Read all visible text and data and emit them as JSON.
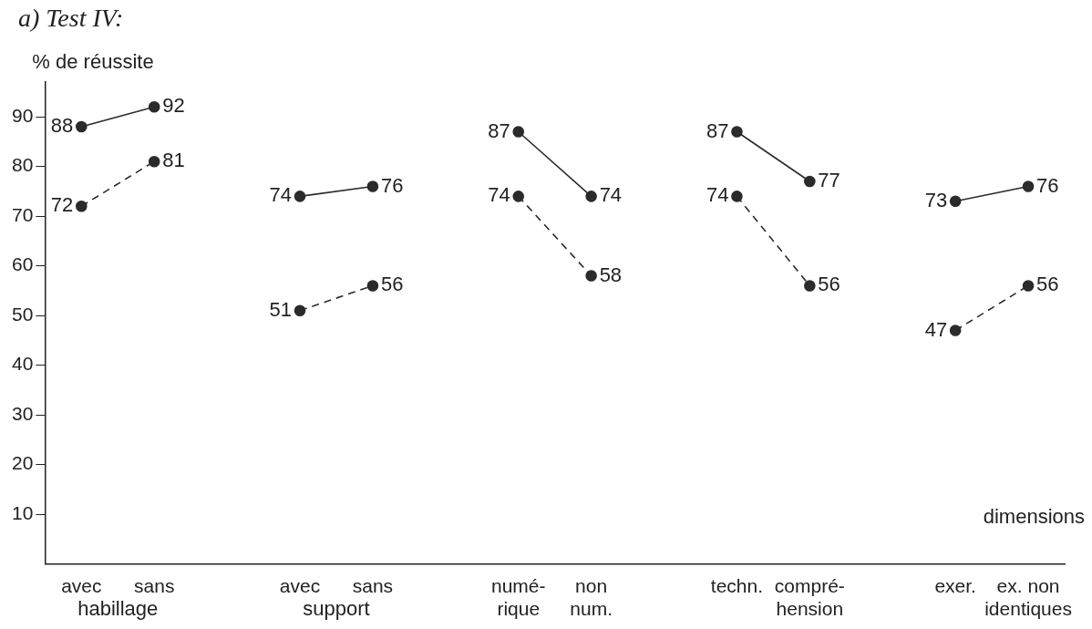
{
  "chart_data": {
    "type": "line",
    "title": "a) Test IV:",
    "ylabel": "% de réussite",
    "xlabel": "dimensions",
    "categories": [
      "avec",
      "sans",
      null,
      "avec",
      "sans",
      null,
      "numé-\nrique",
      "non\nnum.",
      null,
      "techn.",
      "compré-\nhension",
      null,
      "exer.",
      "ex. non\nidentiques"
    ],
    "series": [
      {
        "color": "#2b2b2b",
        "line_style": "solid",
        "values": [
          88,
          92,
          null,
          74,
          76,
          null,
          87,
          74,
          null,
          87,
          77,
          null,
          73,
          76
        ]
      },
      {
        "color": "#2b2b2b",
        "line_style": "dashed",
        "values": [
          72,
          81,
          null,
          51,
          56,
          null,
          74,
          58,
          null,
          74,
          56,
          null,
          47,
          56
        ]
      }
    ],
    "annotations": [
      "habillage",
      "support"
    ],
    "ylim": [
      0,
      97
    ],
    "yticks": [
      10,
      20,
      30,
      40,
      50,
      60,
      70,
      80,
      90
    ],
    "grid": false,
    "legend": false,
    "marker": "circle",
    "data_labels": true
  }
}
